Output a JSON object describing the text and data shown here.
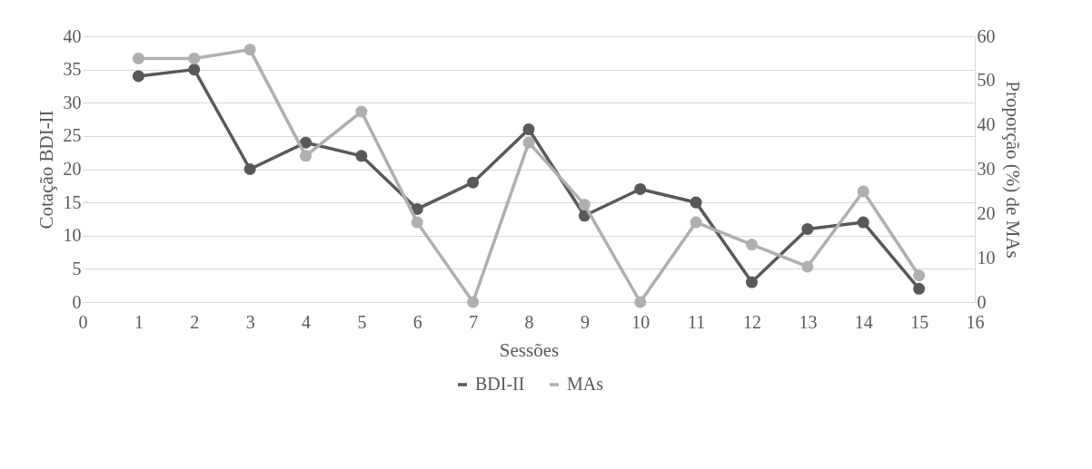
{
  "chart_data": {
    "type": "line",
    "xlabel": "Sessões",
    "ylabel": "Cotação BDI-II",
    "y2label": "Proporção (%) de MAs",
    "x": [
      1,
      2,
      3,
      4,
      5,
      6,
      7,
      8,
      9,
      10,
      11,
      12,
      13,
      14,
      15
    ],
    "series": [
      {
        "name": "BDI-II",
        "color": "#595959",
        "values": [
          34,
          35,
          20,
          24,
          22,
          14,
          18,
          26,
          13,
          17,
          15,
          3,
          11,
          12,
          2
        ]
      },
      {
        "name": "MAs",
        "color": "#afafaf",
        "axis": "y2",
        "values": [
          55,
          55,
          57,
          33,
          43,
          18,
          0,
          36,
          22,
          0,
          18,
          13,
          8,
          25,
          6
        ]
      }
    ],
    "xlim": [
      0,
      16
    ],
    "xticks": [
      0,
      1,
      2,
      3,
      4,
      5,
      6,
      7,
      8,
      9,
      10,
      11,
      12,
      13,
      14,
      15,
      16
    ],
    "ylim": [
      0,
      40
    ],
    "yticks": [
      0,
      5,
      10,
      15,
      20,
      25,
      30,
      35,
      40
    ],
    "y2lim": [
      0,
      60
    ],
    "y2ticks": [
      0,
      10,
      20,
      30,
      40,
      50,
      60
    ],
    "grid": "y",
    "legend": "bottom",
    "marker": "circle",
    "line_style": "solid"
  }
}
